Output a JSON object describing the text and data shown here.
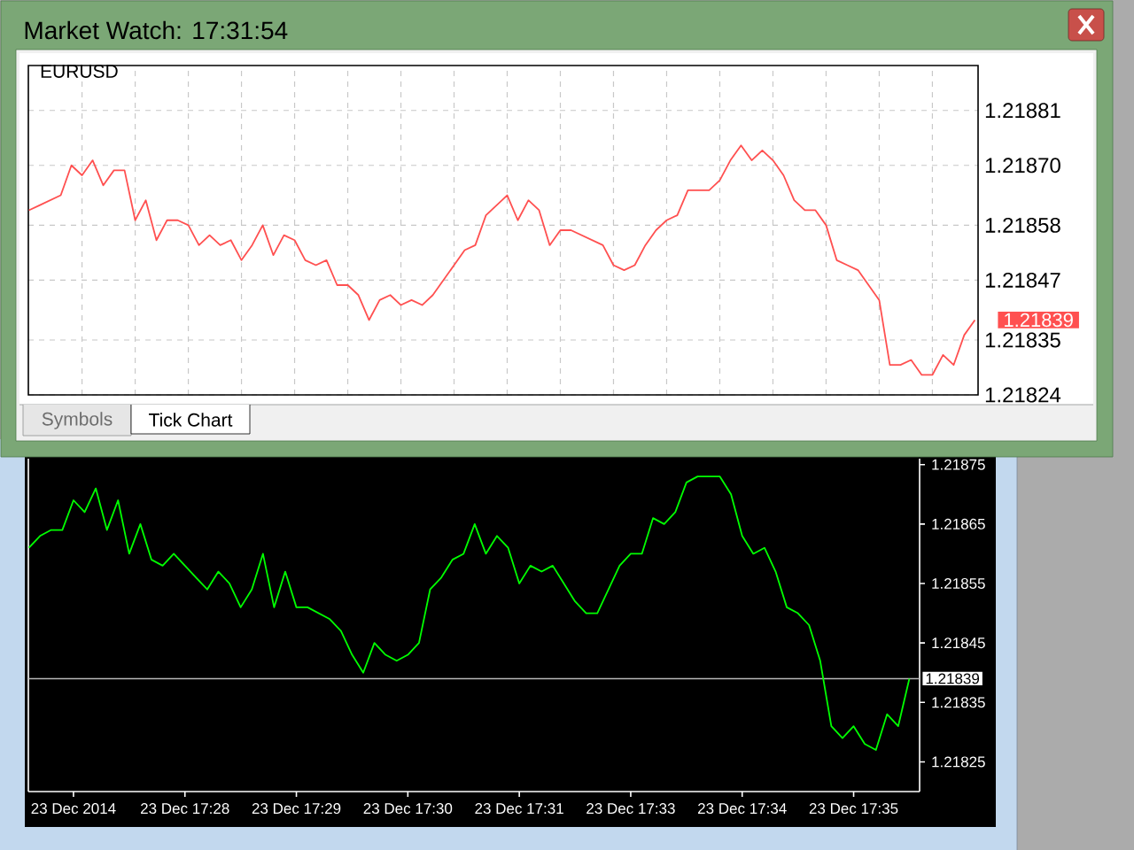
{
  "chart_data": [
    {
      "type": "line",
      "title": "EURUSD",
      "annotations": [
        "Market Watch: 17:31:54",
        "Symbols",
        "Tick Chart",
        "1.21839"
      ],
      "categories": [
        null,
        null,
        null,
        null,
        null,
        null,
        null,
        null,
        null,
        null,
        null,
        null,
        null,
        null,
        null,
        null,
        null,
        null,
        null,
        null,
        null,
        null,
        null,
        null,
        null,
        null,
        null,
        null,
        null,
        null,
        null,
        null,
        null,
        null,
        null,
        null,
        null,
        null,
        null,
        null,
        null,
        null,
        null,
        null,
        null,
        null,
        null,
        null,
        null,
        null,
        null,
        null,
        null,
        null,
        null,
        null,
        null,
        null,
        null,
        null,
        null,
        null,
        null,
        null,
        null,
        null,
        null,
        null,
        null,
        null,
        null,
        null,
        null,
        null,
        null,
        null,
        null,
        null,
        null,
        null,
        null,
        null,
        null,
        null,
        null,
        null,
        null,
        null,
        null,
        null
      ],
      "series": [
        {
          "color": "#ff5050",
          "values": [
            1.21861,
            1.21862,
            1.21863,
            1.21864,
            1.2187,
            1.21868,
            1.21871,
            1.21866,
            1.21869,
            1.21869,
            1.21859,
            1.21863,
            1.21855,
            1.21859,
            1.21859,
            1.21858,
            1.21854,
            1.21856,
            1.21854,
            1.21855,
            1.21851,
            1.21854,
            1.21858,
            1.21852,
            1.21856,
            1.21855,
            1.21851,
            1.2185,
            1.21851,
            1.21846,
            1.21846,
            1.21844,
            1.21839,
            1.21843,
            1.21844,
            1.21842,
            1.21843,
            1.21842,
            1.21844,
            1.21847,
            1.2185,
            1.21853,
            1.21854,
            1.2186,
            1.21862,
            1.21864,
            1.21859,
            1.21863,
            1.21861,
            1.21854,
            1.21857,
            1.21857,
            1.21856,
            1.21855,
            1.21854,
            1.2185,
            1.21849,
            1.2185,
            1.21854,
            1.21857,
            1.21859,
            1.2186,
            1.21865,
            1.21865,
            1.21865,
            1.21867,
            1.21871,
            1.21874,
            1.21871,
            1.21873,
            1.21871,
            1.21868,
            1.21863,
            1.21861,
            1.21861,
            1.21858,
            1.21851,
            1.2185,
            1.21849,
            1.21846,
            1.21843,
            1.2183,
            1.2183,
            1.21831,
            1.21828,
            1.21828,
            1.21832,
            1.2183,
            1.21836,
            1.21839
          ]
        }
      ],
      "ylim": [
        1.21824,
        1.2189
      ],
      "yticks": [
        1.21824,
        1.21835,
        1.21847,
        1.21858,
        {
          "value": 1.2187,
          "label": "1.21870"
        },
        1.21881
      ],
      "grid": true,
      "tick_labels": "y"
    },
    {
      "type": "line",
      "categories": [
        null,
        null,
        null,
        null,
        "23 Dec 2014",
        null,
        null,
        null,
        null,
        null,
        null,
        null,
        null,
        null,
        "23 Dec 17:28",
        null,
        null,
        null,
        null,
        null,
        null,
        null,
        null,
        null,
        "23 Dec 17:29",
        null,
        null,
        null,
        null,
        null,
        null,
        null,
        null,
        null,
        "23 Dec 17:30",
        null,
        null,
        null,
        null,
        null,
        null,
        null,
        null,
        null,
        "23 Dec 17:31",
        null,
        null,
        null,
        null,
        null,
        null,
        null,
        null,
        null,
        "23 Dec 17:33",
        null,
        null,
        null,
        null,
        null,
        null,
        null,
        null,
        null,
        "23 Dec 17:34",
        null,
        null,
        null,
        null,
        null,
        null,
        null,
        null,
        null,
        "23 Dec 17:35",
        null,
        null,
        null,
        null,
        null
      ],
      "series": [
        {
          "color": "#00ff00",
          "values": [
            1.21861,
            1.21863,
            1.21864,
            1.21864,
            1.21869,
            1.21867,
            1.21871,
            1.21864,
            1.21869,
            1.2186,
            1.21865,
            1.21859,
            1.21858,
            1.2186,
            1.21858,
            1.21856,
            1.21854,
            1.21857,
            1.21855,
            1.21851,
            1.21854,
            1.2186,
            1.21851,
            1.21857,
            1.21851,
            1.21851,
            1.2185,
            1.21849,
            1.21847,
            1.21843,
            1.2184,
            1.21845,
            1.21843,
            1.21842,
            1.21843,
            1.21845,
            1.21854,
            1.21856,
            1.21859,
            1.2186,
            1.21865,
            1.2186,
            1.21863,
            1.21861,
            1.21855,
            1.21858,
            1.21857,
            1.21858,
            1.21855,
            1.21852,
            1.2185,
            1.2185,
            1.21854,
            1.21858,
            1.2186,
            1.2186,
            1.21866,
            1.21865,
            1.21867,
            1.21872,
            1.21873,
            1.21873,
            1.21873,
            1.2187,
            1.21863,
            1.2186,
            1.21861,
            1.21857,
            1.21851,
            1.2185,
            1.21848,
            1.21842,
            1.21831,
            1.21829,
            1.21831,
            1.21828,
            1.21827,
            1.21833,
            1.21831,
            1.21839
          ]
        }
      ],
      "ylim": [
        1.2182,
        1.21876
      ],
      "yticks": [
        1.21825,
        1.21835,
        1.21845,
        1.21855,
        1.21865,
        1.21875
      ],
      "ref_lines": [
        {
          "axis": "y",
          "value": 1.21839,
          "label": "1.21839",
          "color": "#b8b8b8"
        }
      ]
    }
  ]
}
